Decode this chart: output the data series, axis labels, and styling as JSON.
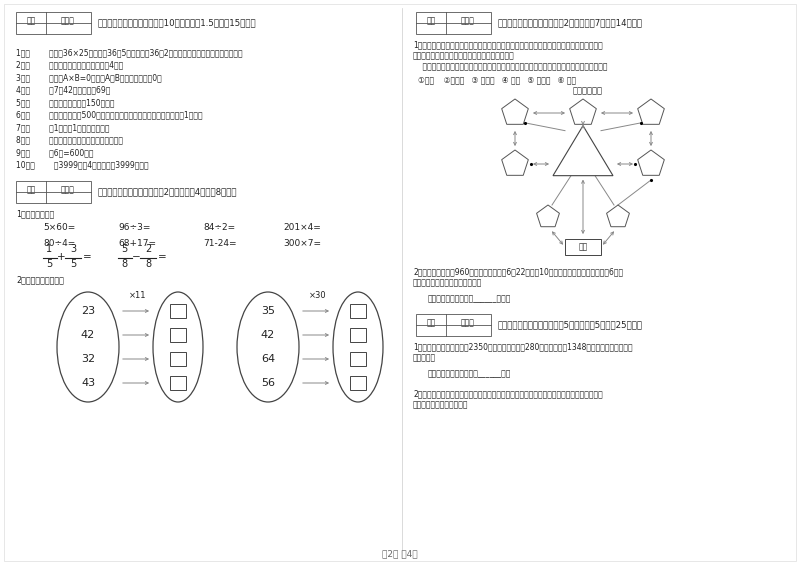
{
  "page_bg": "#ffffff",
  "font_color": "#222222",
  "gray_color": "#666666",
  "border_color": "#333333",
  "section3_title": "三、仔细推敲，正确判断（共10小题，每题1.5分，共15分）。",
  "section3_items": [
    "1．（        ）计算36×25时，先把36和5相乘，再把36和2相乘，最后把两次乘得的结果相加。",
    "2．（        ）正方形的周长是它的边长的4倍。",
    "3．（        ）如果A×B=0，那么A和B中至少有一个是0。",
    "4．（        ）7个42相加的和是69。",
    "5．（        ）一本故事书约重150千克。",
    "6．（        ）小明家离学校500米，他每天上学、回家，一个来回一共要走1千米。",
    "7．（        ）1吨铁与1吨棉花一样重。",
    "8．（        ）小明面对着东方时，背对着西方。",
    "9．（        ）6分=600秒。",
    "10．（        ）3999克与4千克相比，3999克重。"
  ],
  "section4_title": "四、看清题目，细心计算（共2小题，每题4分，共8分）。",
  "section4_sub1": "1．直接写得数。",
  "section4_calcs_row1": [
    "5×60=",
    "96÷3=",
    "84÷2=",
    "201×4="
  ],
  "section4_calcs_row2": [
    "80÷4=",
    "68+17=",
    "71-24=",
    "300×7="
  ],
  "section4_sub2": "2．算一算，填一填。",
  "ellipse1_nums": [
    "23",
    "42",
    "32",
    "43"
  ],
  "ellipse1_op": "×11",
  "ellipse2_nums": [
    "35",
    "42",
    "64",
    "56"
  ],
  "ellipse2_op": "×30",
  "section5_title": "五、认真思考，综合能力（共2小题，每题7分，共14分）。",
  "section5_text1": "1、走进动物园大门，正北面是狮子山和熊猫馆，狮子山的东侧是飞禽馆，四侧是猴园，大象",
  "section5_text2": "馆和鱼馆的场地分别在动物园的东北角和西北角。",
  "section5_text3": "    根据小强的描述，请你把这些动物场馆所在的位置，在动物园的导游图上用序号表示出来。",
  "section5_legend": "①狮山    ②熊猫馆   ③ 飞禽馆   ④ 猴园   ⑤ 大象馆   ⑥ 鱼馆",
  "section5_map_title": "动物园导游图",
  "section5_q2_text1": "2、甲乙两城铁路长960千米，一列客车于6月22日上午10时从甲城开往乙城，当日晚上6时到",
  "section5_q2_text2": "达，这列火车每小时行多少千米？",
  "section5_q2_blank": "答：这列火车每小时行______千米。",
  "section6_title": "六、运用知识，解决问题（共5小题，每题5分，共25分）。",
  "section6_q1_text1": "1、学校图书室原有故事书2350本，现在又买来了280本，并借出了1348本，现在图书室有故事",
  "section6_q1_text2": "书多少本？",
  "section6_q1_blank": "答：现在图书室有故事书______本。",
  "section6_q2_text1": "2、王大伯家有一块菜地，他把其中的七分之二种白菜，七分之三种萝卜，种白菜和萝卜的地",
  "section6_q2_text2": "一共是这块地的几分之几？",
  "footer": "第2页 共4页",
  "score_label1": "得分",
  "score_label2": "评卷人"
}
